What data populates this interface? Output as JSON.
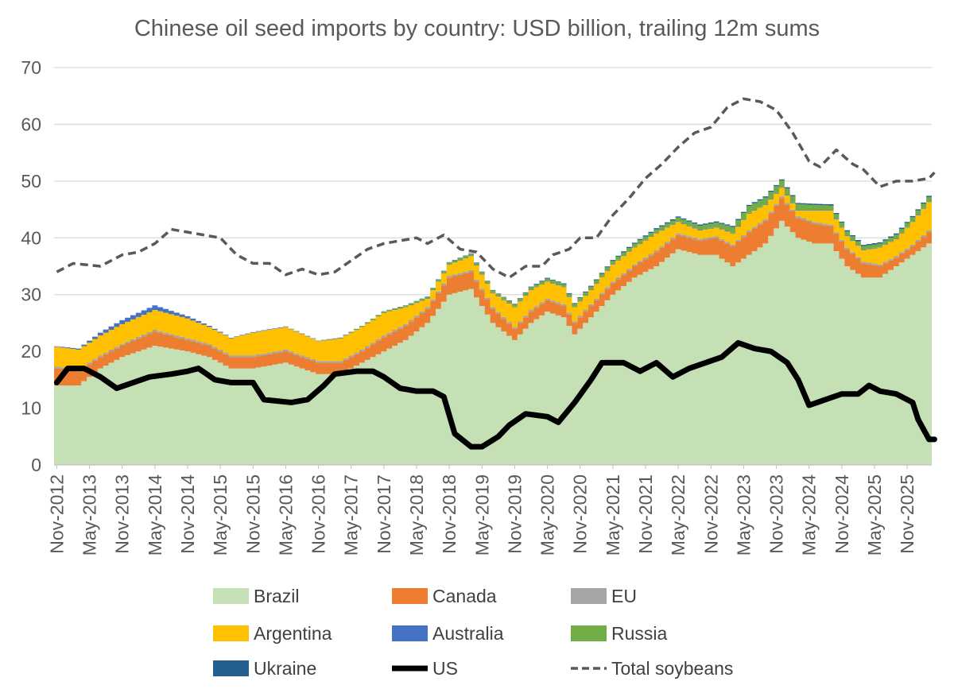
{
  "chart_data": {
    "type": "area",
    "title": "Chinese oil seed imports by country: USD billion, trailing 12m sums",
    "xlabel": "",
    "ylabel": "",
    "ylim": [
      0,
      70
    ],
    "yticks": [
      0,
      10,
      20,
      30,
      40,
      50,
      60,
      70
    ],
    "grid": "horizontal",
    "legend_position": "bottom",
    "x_start": "2012-11",
    "x_end": "2026-03",
    "xtick_labels": [
      "Nov-2012",
      "May-2013",
      "Nov-2013",
      "May-2014",
      "Nov-2014",
      "May-2015",
      "Nov-2015",
      "May-2016",
      "Nov-2016",
      "May-2017",
      "Nov-2017",
      "May-2018",
      "Nov-2018",
      "May-2019",
      "Nov-2019",
      "May-2020",
      "Nov-2020",
      "May-2021",
      "Nov-2021",
      "May-2022",
      "Nov-2022",
      "May-2023",
      "Nov-2023",
      "May-2024",
      "Nov-2024",
      "May-2025",
      "Nov-2025"
    ],
    "colors": {
      "Brazil": "#c5e0b4",
      "Canada": "#ed7d31",
      "EU": "#a5a5a5",
      "Argentina": "#ffc000",
      "Australia": "#4472c4",
      "Russia": "#70ad47",
      "Ukraine": "#255e91",
      "US": "#000000",
      "Total soybeans": "#595959"
    },
    "legend": [
      "Brazil",
      "Canada",
      "EU",
      "Argentina",
      "Australia",
      "Russia",
      "Ukraine",
      "US",
      "Total soybeans"
    ],
    "stacked_series": [
      {
        "name": "Brazil",
        "points": [
          [
            "2012-11",
            14
          ],
          [
            "2013-03",
            14
          ],
          [
            "2013-07",
            17
          ],
          [
            "2013-11",
            19
          ],
          [
            "2014-05",
            21
          ],
          [
            "2014-11",
            20
          ],
          [
            "2015-03",
            19
          ],
          [
            "2015-07",
            17
          ],
          [
            "2015-11",
            17
          ],
          [
            "2016-05",
            18
          ],
          [
            "2016-11",
            16
          ],
          [
            "2017-03",
            16
          ],
          [
            "2017-07",
            18
          ],
          [
            "2017-11",
            20
          ],
          [
            "2018-03",
            22
          ],
          [
            "2018-07",
            25
          ],
          [
            "2018-11",
            30
          ],
          [
            "2019-03",
            31
          ],
          [
            "2019-07",
            25
          ],
          [
            "2019-11",
            22
          ],
          [
            "2020-02",
            25
          ],
          [
            "2020-05",
            27
          ],
          [
            "2020-08",
            26
          ],
          [
            "2020-10",
            23
          ],
          [
            "2021-01",
            26
          ],
          [
            "2021-05",
            30
          ],
          [
            "2021-09",
            33
          ],
          [
            "2022-01",
            35
          ],
          [
            "2022-05",
            38
          ],
          [
            "2022-09",
            37
          ],
          [
            "2022-12",
            37
          ],
          [
            "2023-03",
            35
          ],
          [
            "2023-06",
            37
          ],
          [
            "2023-09",
            39
          ],
          [
            "2023-12",
            43
          ],
          [
            "2024-03",
            40
          ],
          [
            "2024-06",
            39
          ],
          [
            "2024-09",
            39
          ],
          [
            "2024-12",
            35
          ],
          [
            "2025-03",
            33
          ],
          [
            "2025-06",
            33
          ],
          [
            "2025-09",
            35
          ],
          [
            "2025-12",
            37
          ],
          [
            "2026-03",
            39
          ]
        ]
      },
      {
        "name": "Canada",
        "points": [
          [
            "2012-11",
            3
          ],
          [
            "2013-03",
            2.5
          ],
          [
            "2013-07",
            2
          ],
          [
            "2013-11",
            2
          ],
          [
            "2014-05",
            2.5
          ],
          [
            "2014-11",
            2
          ],
          [
            "2015-03",
            2
          ],
          [
            "2015-07",
            2
          ],
          [
            "2015-11",
            2
          ],
          [
            "2016-05",
            2
          ],
          [
            "2016-11",
            2
          ],
          [
            "2017-03",
            2
          ],
          [
            "2017-07",
            2
          ],
          [
            "2017-11",
            2.5
          ],
          [
            "2018-03",
            2.5
          ],
          [
            "2018-07",
            2.5
          ],
          [
            "2018-11",
            3
          ],
          [
            "2019-03",
            3
          ],
          [
            "2019-07",
            2.5
          ],
          [
            "2019-11",
            2
          ],
          [
            "2020-02",
            2
          ],
          [
            "2020-05",
            2
          ],
          [
            "2020-08",
            2
          ],
          [
            "2020-10",
            2
          ],
          [
            "2021-01",
            2
          ],
          [
            "2021-05",
            2
          ],
          [
            "2021-09",
            2
          ],
          [
            "2022-01",
            2.5
          ],
          [
            "2022-05",
            2.5
          ],
          [
            "2022-09",
            2.5
          ],
          [
            "2022-12",
            3
          ],
          [
            "2023-03",
            3.5
          ],
          [
            "2023-06",
            4
          ],
          [
            "2023-09",
            4
          ],
          [
            "2023-12",
            4
          ],
          [
            "2024-03",
            3.5
          ],
          [
            "2024-06",
            3.5
          ],
          [
            "2024-09",
            3
          ],
          [
            "2024-12",
            3
          ],
          [
            "2025-03",
            2.5
          ],
          [
            "2025-06",
            2
          ],
          [
            "2025-09",
            1.5
          ],
          [
            "2025-12",
            1.5
          ],
          [
            "2026-03",
            2
          ]
        ]
      },
      {
        "name": "EU",
        "points": [
          [
            "2012-11",
            0.3
          ],
          [
            "2026-03",
            0.3
          ]
        ]
      },
      {
        "name": "Argentina",
        "points": [
          [
            "2012-11",
            3.5
          ],
          [
            "2013-03",
            3.5
          ],
          [
            "2013-07",
            3.5
          ],
          [
            "2013-11",
            3.5
          ],
          [
            "2014-05",
            3.5
          ],
          [
            "2014-11",
            3.5
          ],
          [
            "2015-03",
            3
          ],
          [
            "2015-07",
            3
          ],
          [
            "2015-11",
            4
          ],
          [
            "2016-05",
            4
          ],
          [
            "2016-11",
            3.5
          ],
          [
            "2017-03",
            4
          ],
          [
            "2017-07",
            4
          ],
          [
            "2017-11",
            4
          ],
          [
            "2018-03",
            3
          ],
          [
            "2018-07",
            1.5
          ],
          [
            "2018-11",
            2
          ],
          [
            "2019-03",
            2.5
          ],
          [
            "2019-07",
            2.5
          ],
          [
            "2019-11",
            3.5
          ],
          [
            "2020-02",
            3.5
          ],
          [
            "2020-05",
            3
          ],
          [
            "2020-08",
            3
          ],
          [
            "2020-10",
            2.5
          ],
          [
            "2021-01",
            2.5
          ],
          [
            "2021-05",
            3
          ],
          [
            "2021-09",
            3
          ],
          [
            "2022-01",
            3
          ],
          [
            "2022-05",
            2
          ],
          [
            "2022-09",
            1.5
          ],
          [
            "2022-12",
            1.5
          ],
          [
            "2023-03",
            2
          ],
          [
            "2023-06",
            3
          ],
          [
            "2023-09",
            2.5
          ],
          [
            "2023-12",
            1.5
          ],
          [
            "2024-03",
            1
          ],
          [
            "2024-06",
            2
          ],
          [
            "2024-09",
            2.5
          ],
          [
            "2024-12",
            2
          ],
          [
            "2025-03",
            2
          ],
          [
            "2025-06",
            3
          ],
          [
            "2025-09",
            3
          ],
          [
            "2025-12",
            4
          ],
          [
            "2026-03",
            5
          ]
        ]
      },
      {
        "name": "Australia",
        "points": [
          [
            "2012-11",
            0.1
          ],
          [
            "2013-03",
            0.2
          ],
          [
            "2013-07",
            0.5
          ],
          [
            "2013-11",
            0.7
          ],
          [
            "2014-05",
            0.8
          ],
          [
            "2014-11",
            0.4
          ],
          [
            "2015-03",
            0.2
          ],
          [
            "2015-07",
            0.1
          ],
          [
            "2016-01",
            0.1
          ],
          [
            "2026-03",
            0.1
          ]
        ]
      },
      {
        "name": "Russia",
        "points": [
          [
            "2012-11",
            0
          ],
          [
            "2017-01",
            0
          ],
          [
            "2018-01",
            0.2
          ],
          [
            "2019-01",
            0.3
          ],
          [
            "2020-01",
            0.4
          ],
          [
            "2021-01",
            0.5
          ],
          [
            "2022-01",
            0.6
          ],
          [
            "2022-12",
            0.8
          ],
          [
            "2023-06",
            1.2
          ],
          [
            "2023-12",
            1.2
          ],
          [
            "2024-06",
            0.9
          ],
          [
            "2025-01",
            0.7
          ],
          [
            "2025-06",
            0.6
          ],
          [
            "2026-03",
            0.8
          ]
        ]
      },
      {
        "name": "Ukraine",
        "points": [
          [
            "2012-11",
            0
          ],
          [
            "2018-01",
            0
          ],
          [
            "2020-01",
            0.1
          ],
          [
            "2022-01",
            0.2
          ],
          [
            "2023-06",
            0.2
          ],
          [
            "2026-03",
            0.2
          ]
        ]
      }
    ],
    "line_series": [
      {
        "name": "US",
        "style": "solid",
        "points": [
          [
            "2012-11",
            14.5
          ],
          [
            "2013-01",
            17
          ],
          [
            "2013-04",
            17
          ],
          [
            "2013-07",
            15.5
          ],
          [
            "2013-10",
            13.5
          ],
          [
            "2014-01",
            14.5
          ],
          [
            "2014-04",
            15.5
          ],
          [
            "2014-08",
            16
          ],
          [
            "2014-11",
            16.5
          ],
          [
            "2015-01",
            17
          ],
          [
            "2015-04",
            15
          ],
          [
            "2015-07",
            14.5
          ],
          [
            "2015-11",
            14.5
          ],
          [
            "2016-01",
            11.5
          ],
          [
            "2016-06",
            11
          ],
          [
            "2016-09",
            11.5
          ],
          [
            "2016-12",
            14
          ],
          [
            "2017-02",
            16
          ],
          [
            "2017-06",
            16.5
          ],
          [
            "2017-09",
            16.5
          ],
          [
            "2017-11",
            15.5
          ],
          [
            "2018-02",
            13.5
          ],
          [
            "2018-05",
            13
          ],
          [
            "2018-08",
            13
          ],
          [
            "2018-10",
            12
          ],
          [
            "2018-12",
            5.5
          ],
          [
            "2019-03",
            3.2
          ],
          [
            "2019-05",
            3.2
          ],
          [
            "2019-08",
            5
          ],
          [
            "2019-10",
            7
          ],
          [
            "2020-01",
            9
          ],
          [
            "2020-05",
            8.5
          ],
          [
            "2020-07",
            7.5
          ],
          [
            "2020-10",
            11
          ],
          [
            "2021-01",
            15
          ],
          [
            "2021-03",
            18
          ],
          [
            "2021-07",
            18
          ],
          [
            "2021-10",
            16.5
          ],
          [
            "2022-01",
            18
          ],
          [
            "2022-04",
            15.5
          ],
          [
            "2022-07",
            17
          ],
          [
            "2022-10",
            18
          ],
          [
            "2023-01",
            19
          ],
          [
            "2023-04",
            21.5
          ],
          [
            "2023-07",
            20.5
          ],
          [
            "2023-10",
            20
          ],
          [
            "2024-01",
            18
          ],
          [
            "2024-03",
            15
          ],
          [
            "2024-05",
            10.5
          ],
          [
            "2024-08",
            11.5
          ],
          [
            "2024-11",
            12.5
          ],
          [
            "2025-02",
            12.5
          ],
          [
            "2025-04",
            14
          ],
          [
            "2025-06",
            13
          ],
          [
            "2025-09",
            12.5
          ],
          [
            "2025-12",
            11
          ],
          [
            "2026-01",
            8
          ],
          [
            "2026-03",
            4.5
          ],
          [
            "2026-04",
            4.5
          ]
        ]
      },
      {
        "name": "Total soybeans",
        "style": "dashed",
        "points": [
          [
            "2012-11",
            34
          ],
          [
            "2013-02",
            35.5
          ],
          [
            "2013-07",
            35
          ],
          [
            "2013-11",
            37
          ],
          [
            "2014-02",
            37.5
          ],
          [
            "2014-05",
            39
          ],
          [
            "2014-08",
            41.5
          ],
          [
            "2014-11",
            41
          ],
          [
            "2015-02",
            40.5
          ],
          [
            "2015-05",
            40
          ],
          [
            "2015-08",
            37
          ],
          [
            "2015-11",
            35.5
          ],
          [
            "2016-02",
            35.5
          ],
          [
            "2016-05",
            33.5
          ],
          [
            "2016-08",
            34.5
          ],
          [
            "2016-11",
            33.5
          ],
          [
            "2017-02",
            34
          ],
          [
            "2017-05",
            36
          ],
          [
            "2017-08",
            38
          ],
          [
            "2017-11",
            39
          ],
          [
            "2018-02",
            39.5
          ],
          [
            "2018-05",
            40
          ],
          [
            "2018-07",
            39
          ],
          [
            "2018-10",
            40.5
          ],
          [
            "2019-01",
            38
          ],
          [
            "2019-04",
            37.5
          ],
          [
            "2019-07",
            34.5
          ],
          [
            "2019-10",
            33
          ],
          [
            "2020-01",
            35
          ],
          [
            "2020-04",
            35
          ],
          [
            "2020-06",
            37
          ],
          [
            "2020-09",
            38
          ],
          [
            "2020-11",
            40
          ],
          [
            "2021-02",
            40
          ],
          [
            "2021-05",
            44
          ],
          [
            "2021-08",
            47
          ],
          [
            "2021-11",
            50.5
          ],
          [
            "2022-02",
            53
          ],
          [
            "2022-05",
            56
          ],
          [
            "2022-08",
            58.5
          ],
          [
            "2022-11",
            59.5
          ],
          [
            "2023-02",
            63
          ],
          [
            "2023-05",
            64.5
          ],
          [
            "2023-08",
            64
          ],
          [
            "2023-11",
            62.5
          ],
          [
            "2024-02",
            58.5
          ],
          [
            "2024-05",
            53.5
          ],
          [
            "2024-07",
            52.5
          ],
          [
            "2024-10",
            55.5
          ],
          [
            "2025-01",
            53
          ],
          [
            "2025-03",
            52
          ],
          [
            "2025-06",
            49
          ],
          [
            "2025-09",
            50
          ],
          [
            "2025-12",
            50
          ],
          [
            "2026-03",
            50.5
          ],
          [
            "2026-04",
            51.5
          ]
        ]
      }
    ]
  }
}
